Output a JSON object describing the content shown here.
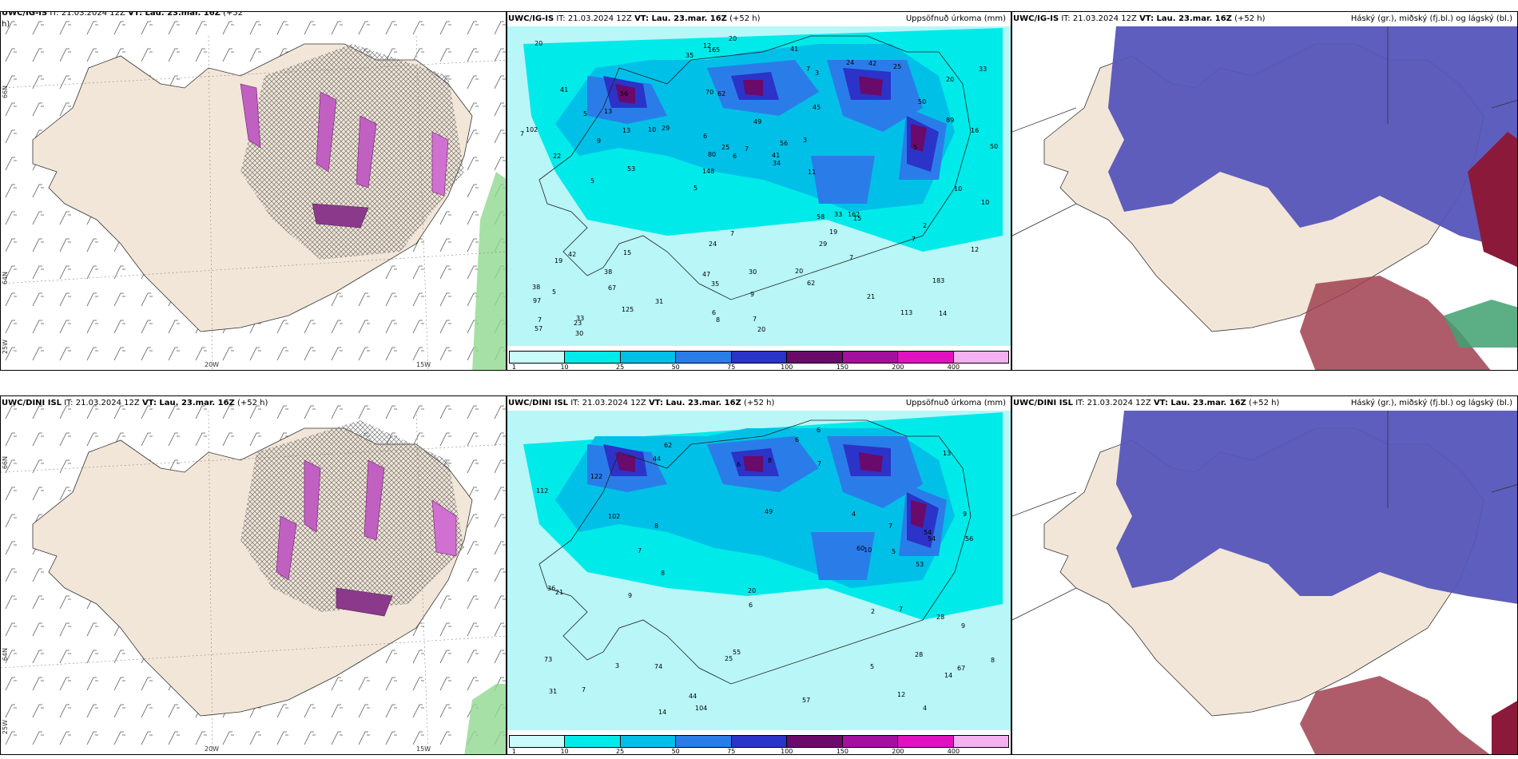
{
  "rows": [
    {
      "panels": [
        {
          "model": "UWC/IG-IS",
          "it": "IT: 21.03.2024 12Z",
          "vt": "VT: Lau. 23.mar. 16Z",
          "lead": "(+52",
          "lead2": "h)",
          "right": ""
        },
        {
          "model": "UWC/IG-IS",
          "it": "IT: 21.03.2024 12Z",
          "vt": "VT: Lau. 23.mar. 16Z",
          "lead": "(+52 h)",
          "right": "Uppsöfnuð úrkoma (mm)"
        },
        {
          "model": "UWC/IG-IS",
          "it": "IT: 21.03.2024 12Z",
          "vt": "VT: Lau. 23.mar. 16Z",
          "lead": "(+52 h)",
          "right": "Háský (gr.), miðský (fj.bl.) og lágský (bl.)"
        }
      ]
    },
    {
      "panels": [
        {
          "model": "UWC/DINI ISL",
          "it": "IT: 21.03.2024 12Z",
          "vt": "VT: Lau. 23.mar. 16Z",
          "lead": "(+52 h)",
          "right": ""
        },
        {
          "model": "UWC/DINI ISL",
          "it": "IT: 21.03.2024 12Z",
          "vt": "VT: Lau. 23.mar. 16Z",
          "lead": "(+52 h)",
          "right": "Uppsöfnuð úrkoma (mm)"
        },
        {
          "model": "UWC/DINI ISL",
          "it": "IT: 21.03.2024 12Z",
          "vt": "VT: Lau. 23.mar. 16Z",
          "lead": "(+52 h)",
          "right": "Háský (gr.), miðský (fj.bl.) og lágský (bl.)"
        }
      ]
    }
  ],
  "axes": {
    "lon1": "20W",
    "lon2": "15W",
    "lat1": "66N",
    "lat2": "64N",
    "lat3": "25W"
  },
  "colorbar": {
    "ticks": [
      "1",
      "10",
      "25",
      "50",
      "75",
      "100",
      "150",
      "200",
      "400"
    ],
    "colors": [
      "#c9fbfb",
      "#00eaea",
      "#00c0e8",
      "#2a7de8",
      "#2b33c8",
      "#6a0a6a",
      "#a3109e",
      "#e012c0",
      "#f4b0f0"
    ]
  },
  "precip_labels_top": [
    "14",
    "22",
    "20",
    "5",
    "45",
    "33",
    "70",
    "49",
    "42",
    "29",
    "97",
    "67",
    "62",
    "56",
    "15",
    "41",
    "165",
    "50",
    "58",
    "89",
    "148",
    "47",
    "80",
    "56",
    "24",
    "15",
    "113",
    "183",
    "162",
    "20",
    "10",
    "9",
    "29",
    "125",
    "16",
    "41",
    "7",
    "35",
    "34",
    "19",
    "50",
    "33",
    "19",
    "62",
    "38",
    "30",
    "57",
    "30",
    "25",
    "20",
    "53",
    "102",
    "13",
    "42",
    "23",
    "41",
    "35",
    "25",
    "12",
    "24",
    "31",
    "33",
    "13",
    "38",
    "20",
    "5",
    "10",
    "6",
    "9",
    "7",
    "5",
    "11",
    "2",
    "6",
    "5",
    "7",
    "21",
    "7",
    "20",
    "12",
    "10",
    "3",
    "7",
    "6",
    "7",
    "7",
    "8",
    "7",
    "3",
    "5"
  ],
  "precip_labels_bottom": [
    "28",
    "9",
    "67",
    "49",
    "31",
    "62",
    "54",
    "74",
    "13",
    "102",
    "56",
    "112",
    "53",
    "104",
    "73",
    "122",
    "14",
    "44",
    "55",
    "54",
    "36",
    "21",
    "57",
    "60",
    "44",
    "25",
    "6",
    "7",
    "4",
    "8",
    "9",
    "5",
    "14",
    "20",
    "28",
    "12",
    "10",
    "6",
    "4",
    "8",
    "7",
    "5",
    "8",
    "7",
    "9",
    "2",
    "7",
    "6",
    "8",
    "7",
    "3",
    "6"
  ],
  "cloud_legend": {
    "high": "#d9d9d9",
    "mid": "#5555bb",
    "low": "#f2e6d8"
  }
}
